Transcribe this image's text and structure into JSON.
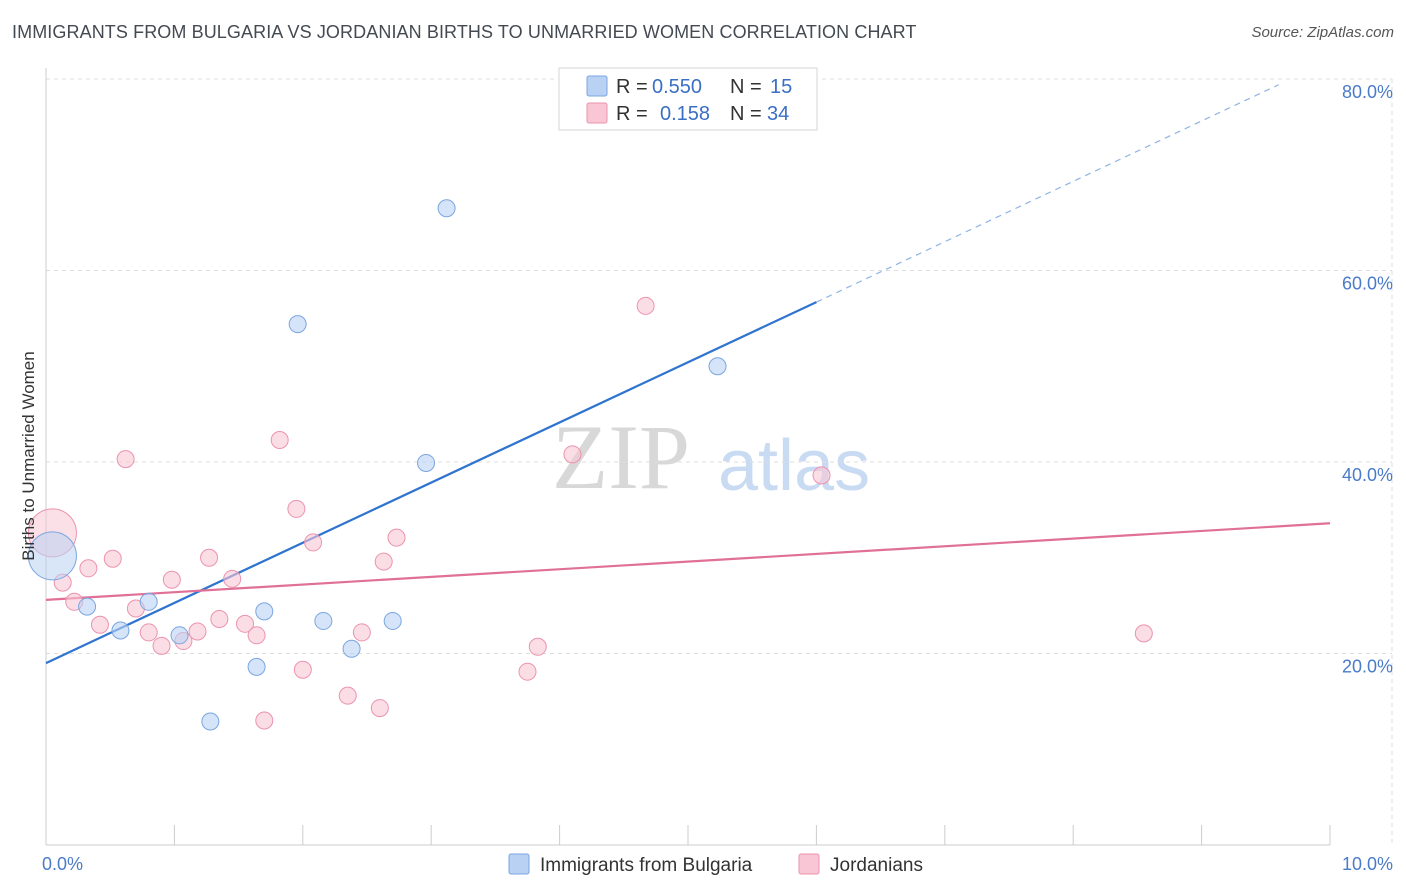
{
  "title": "IMMIGRANTS FROM BULGARIA VS JORDANIAN BIRTHS TO UNMARRIED WOMEN CORRELATION CHART",
  "source": "Source: ZipAtlas.com",
  "watermark": {
    "zip": "ZIP",
    "atlas": "atlas"
  },
  "colors": {
    "blue_fill": "#b9d2f3",
    "blue_stroke": "#7aa6e0",
    "blue_line": "#2f74cf",
    "pink_fill": "#f8c6d5",
    "pink_stroke": "#ec93ae",
    "pink_line": "#e07097",
    "tick_text": "#4a7bc8",
    "grid": "#dddddd"
  },
  "legend": {
    "rows": [
      {
        "r_label": "R =",
        "r_value": "0.550",
        "n_label": "N =",
        "n_value": "15"
      },
      {
        "r_label": "R =",
        "r_value": "0.158",
        "n_label": "N =",
        "n_value": "34"
      }
    ]
  },
  "chart_data": {
    "type": "scatter",
    "title": "IMMIGRANTS FROM BULGARIA VS JORDANIAN BIRTHS TO UNMARRIED WOMEN CORRELATION CHART",
    "xlabel": "",
    "ylabel": "Births to Unmarried Women",
    "xlim": [
      0,
      10
    ],
    "ylim": [
      0,
      80
    ],
    "x_ticks": [
      {
        "value": 0,
        "label": "0.0%"
      },
      {
        "value": 10,
        "label": "10.0%"
      }
    ],
    "y_ticks": [
      {
        "value": 20,
        "label": "20.0%"
      },
      {
        "value": 40,
        "label": "40.0%"
      },
      {
        "value": 60,
        "label": "60.0%"
      },
      {
        "value": 80,
        "label": "80.0%"
      }
    ],
    "series": [
      {
        "name": "Immigrants from Bulgaria",
        "color": "blue",
        "points": [
          {
            "x": 0.05,
            "y": 30.2,
            "big": true
          },
          {
            "x": 0.32,
            "y": 24.9
          },
          {
            "x": 0.58,
            "y": 22.4
          },
          {
            "x": 0.8,
            "y": 25.4
          },
          {
            "x": 1.04,
            "y": 21.9
          },
          {
            "x": 1.28,
            "y": 12.9
          },
          {
            "x": 1.64,
            "y": 18.6
          },
          {
            "x": 1.7,
            "y": 24.4
          },
          {
            "x": 1.96,
            "y": 54.4
          },
          {
            "x": 2.16,
            "y": 23.4
          },
          {
            "x": 2.38,
            "y": 20.5
          },
          {
            "x": 2.7,
            "y": 23.4
          },
          {
            "x": 2.96,
            "y": 39.9
          },
          {
            "x": 3.12,
            "y": 66.5
          },
          {
            "x": 5.23,
            "y": 50.0
          }
        ],
        "trend": {
          "x0": 0,
          "y0": 19.0,
          "x1": 6.0,
          "y1": 56.7,
          "dash_to_x": 9.6,
          "dash_to_y": 79.4
        }
      },
      {
        "name": "Jordanians",
        "color": "pink",
        "points": [
          {
            "x": 0.05,
            "y": 32.6,
            "big": true
          },
          {
            "x": 0.13,
            "y": 27.4
          },
          {
            "x": 0.22,
            "y": 25.4
          },
          {
            "x": 0.33,
            "y": 28.9
          },
          {
            "x": 0.42,
            "y": 23.0
          },
          {
            "x": 0.52,
            "y": 29.9
          },
          {
            "x": 0.62,
            "y": 40.3
          },
          {
            "x": 0.7,
            "y": 24.7
          },
          {
            "x": 0.8,
            "y": 22.2
          },
          {
            "x": 0.9,
            "y": 20.8
          },
          {
            "x": 0.98,
            "y": 27.7
          },
          {
            "x": 1.07,
            "y": 21.3
          },
          {
            "x": 1.18,
            "y": 22.3
          },
          {
            "x": 1.27,
            "y": 30.0
          },
          {
            "x": 1.35,
            "y": 23.6
          },
          {
            "x": 1.45,
            "y": 27.8
          },
          {
            "x": 1.55,
            "y": 23.1
          },
          {
            "x": 1.64,
            "y": 21.9
          },
          {
            "x": 1.7,
            "y": 13.0
          },
          {
            "x": 1.82,
            "y": 42.3
          },
          {
            "x": 1.95,
            "y": 35.1
          },
          {
            "x": 2.0,
            "y": 18.3
          },
          {
            "x": 2.08,
            "y": 31.6
          },
          {
            "x": 2.35,
            "y": 15.6
          },
          {
            "x": 2.46,
            "y": 22.2
          },
          {
            "x": 2.6,
            "y": 14.3
          },
          {
            "x": 2.63,
            "y": 29.6
          },
          {
            "x": 2.73,
            "y": 32.1
          },
          {
            "x": 3.75,
            "y": 18.1
          },
          {
            "x": 3.83,
            "y": 20.7
          },
          {
            "x": 4.1,
            "y": 40.8
          },
          {
            "x": 4.67,
            "y": 56.3
          },
          {
            "x": 6.04,
            "y": 38.6
          },
          {
            "x": 8.55,
            "y": 22.1
          }
        ],
        "trend": {
          "x0": 0,
          "y0": 25.6,
          "x1": 10.0,
          "y1": 33.6
        }
      }
    ],
    "legend_position": "top-center",
    "grid": true
  }
}
